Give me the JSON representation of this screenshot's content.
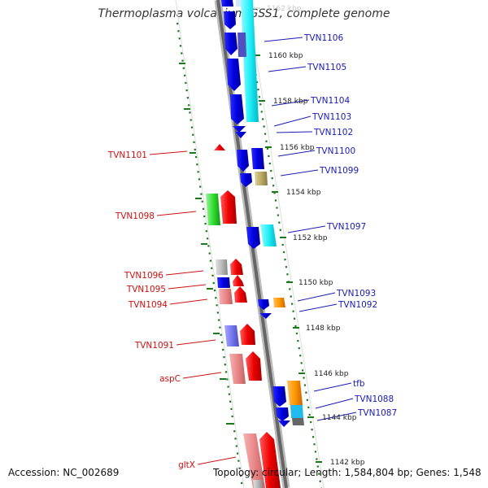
{
  "title": "Thermoplasma volcanium GSS1, complete genome",
  "footer": {
    "accession": "Accession: NC_002689",
    "summary": "Topology: circular; Length: 1,584,804 bp; Genes: 1,548"
  },
  "colors": {
    "right_label": "#1a1ab8",
    "left_label": "#cc1111",
    "scale_dots": "#1a7a1a",
    "backbone": "#777777"
  },
  "scale": {
    "ticks": [
      {
        "label": "1162 kbp",
        "faded": true
      },
      {
        "label": "1160 kbp"
      },
      {
        "label": "1158 kbp"
      },
      {
        "label": "1156 kbp"
      },
      {
        "label": "1154 kbp"
      },
      {
        "label": "1152 kbp"
      },
      {
        "label": "1150 kbp"
      },
      {
        "label": "1148 kbp"
      },
      {
        "label": "1146 kbp"
      },
      {
        "label": "1144 kbp"
      },
      {
        "label": "1142 kbp"
      }
    ]
  },
  "genes_right": [
    {
      "label": "TVN1106"
    },
    {
      "label": "TVN1105"
    },
    {
      "label": "TVN1104"
    },
    {
      "label": "TVN1103"
    },
    {
      "label": "TVN1102"
    },
    {
      "label": "TVN1100"
    },
    {
      "label": "TVN1099"
    },
    {
      "label": "TVN1097"
    },
    {
      "label": "TVN1093"
    },
    {
      "label": "TVN1092"
    },
    {
      "label": "tfb"
    },
    {
      "label": "TVN1088"
    },
    {
      "label": "TVN1087"
    }
  ],
  "genes_left": [
    {
      "label": "TVN1101"
    },
    {
      "label": "TVN1098"
    },
    {
      "label": "TVN1096"
    },
    {
      "label": "TVN1095"
    },
    {
      "label": "TVN1094"
    },
    {
      "label": "TVN1091"
    },
    {
      "label": "aspC"
    },
    {
      "label": "gltX"
    }
  ]
}
